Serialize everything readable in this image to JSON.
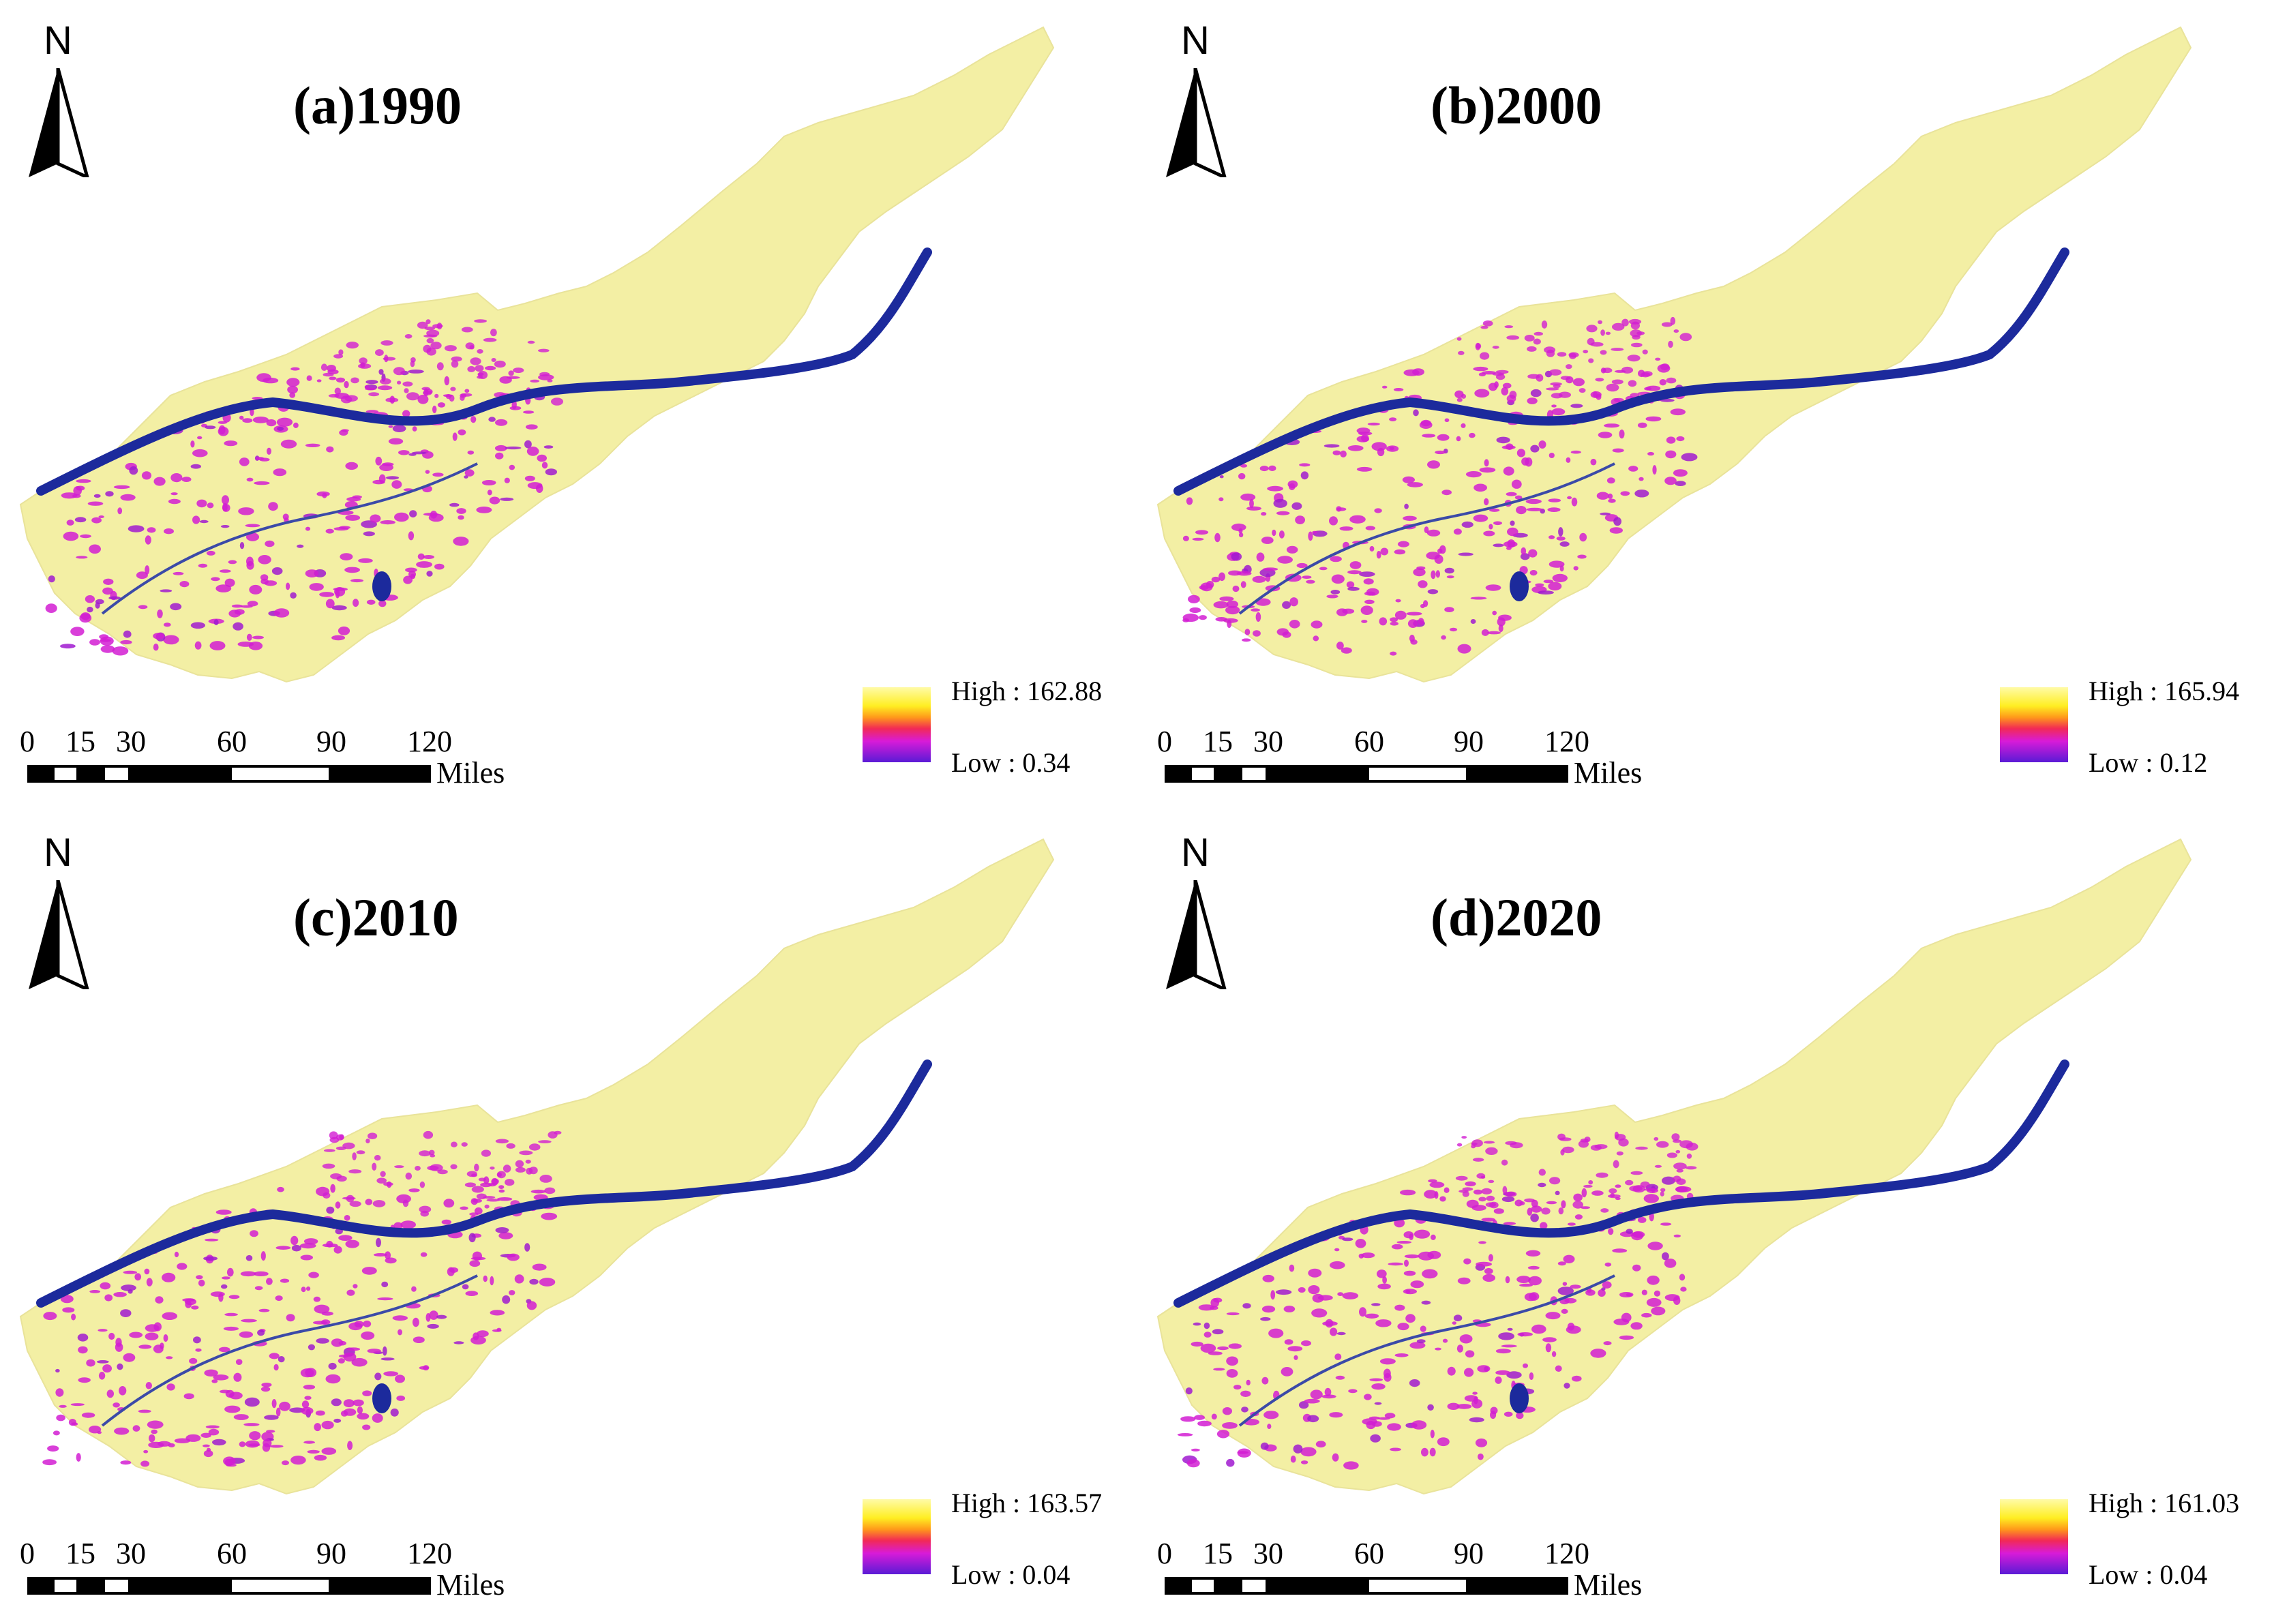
{
  "north_label": "N",
  "scale_ticks": [
    "0",
    "15",
    "30",
    "60",
    "90",
    "120"
  ],
  "scale_unit": "Miles",
  "colors": {
    "background_fill": "#f3eeA0",
    "high_fill": "#fbf08a",
    "low_fill": "#d21dd2",
    "river": "#1c2a9c"
  },
  "panels": [
    {
      "title": "(a)1990",
      "legend_high": "High : 162.88",
      "legend_low": "Low : 0.34"
    },
    {
      "title": "(b)2000",
      "legend_high": "High : 165.94",
      "legend_low": "Low : 0.12"
    },
    {
      "title": "(c)2010",
      "legend_high": "High : 163.57",
      "legend_low": "Low : 0.04"
    },
    {
      "title": "(d)2020",
      "legend_high": "High : 161.03",
      "legend_low": "Low : 0.04"
    }
  ]
}
